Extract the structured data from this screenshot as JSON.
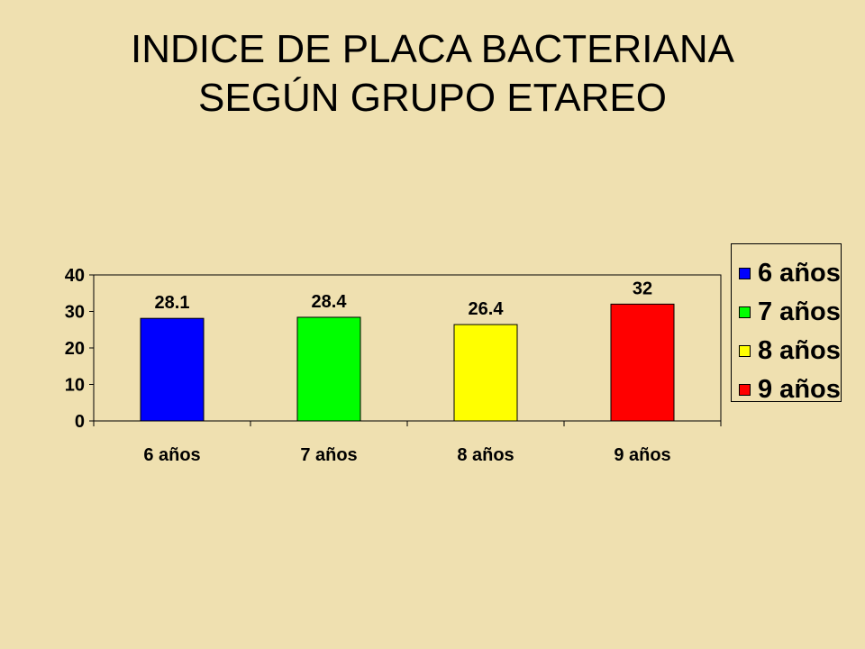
{
  "title": {
    "line1": "INDICE DE PLACA BACTERIANA",
    "line2": "SEGÚN GRUPO ETAREO"
  },
  "chart_data": {
    "type": "bar",
    "categories": [
      "6 años",
      "7 años",
      "8 años",
      "9 años"
    ],
    "values": [
      28.1,
      28.4,
      26.4,
      32
    ],
    "value_labels": [
      "28.1",
      "28.4",
      "26.4",
      "32"
    ],
    "colors": [
      "#0000ff",
      "#00ff00",
      "#ffff00",
      "#ff0000"
    ],
    "ylim": [
      0,
      40
    ],
    "yticks": [
      0,
      10,
      20,
      30,
      40
    ],
    "grid": false,
    "legend": {
      "placement": "right",
      "entries": [
        "6 años",
        "7 años",
        "8 años",
        "9 años"
      ]
    }
  }
}
